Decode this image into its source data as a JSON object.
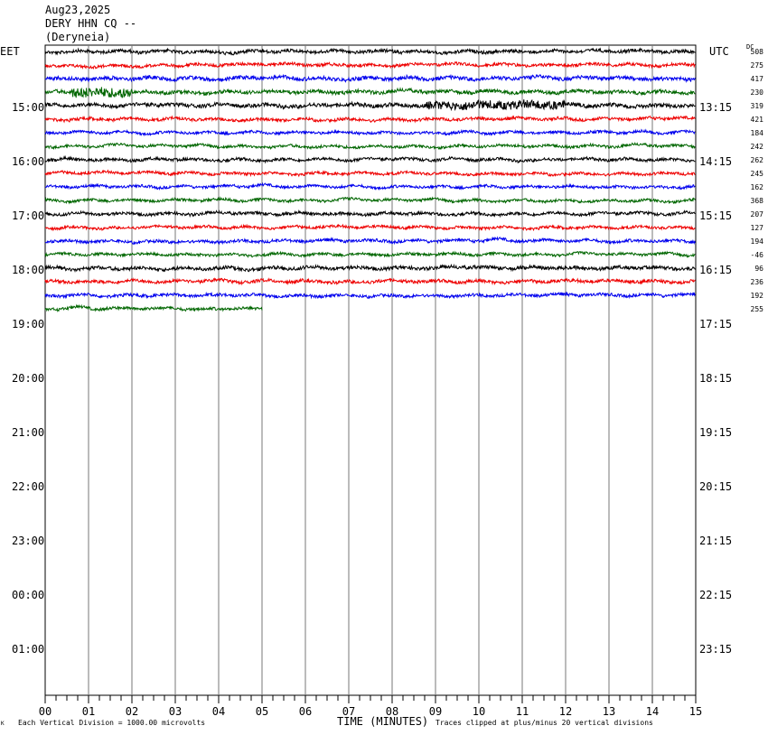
{
  "header": {
    "date": "Aug23,2025",
    "station": "DERY HHN CQ --",
    "location": "(Deryneia)"
  },
  "left_zone": "EET",
  "right_zone": "UTC",
  "dc_label": "DC",
  "footer": {
    "key_mark": "K",
    "vertical_division": "Each Vertical Division = 1000.00 microvolts",
    "clip_note": "Traces clipped at plus/minus 20 vertical divisions"
  },
  "chart_data": {
    "type": "line",
    "title": "DERY HHN CQ -- (Deryneia)",
    "xlabel": "TIME (MINUTES)",
    "x_ticks": [
      "00",
      "01",
      "02",
      "03",
      "04",
      "05",
      "06",
      "07",
      "08",
      "09",
      "10",
      "11",
      "12",
      "13",
      "14",
      "15"
    ],
    "xlim": [
      0,
      15
    ],
    "grid": true,
    "left_hour_labels": [
      "15:00",
      "16:00",
      "17:00",
      "18:00",
      "19:00",
      "20:00",
      "21:00",
      "22:00",
      "23:00",
      "00:00",
      "01:00"
    ],
    "right_hour_labels": [
      "13:15",
      "14:15",
      "15:15",
      "16:15",
      "17:15",
      "18:15",
      "19:15",
      "20:15",
      "21:15",
      "22:15",
      "23:15"
    ],
    "trace_colors": [
      "#000000",
      "#ee0000",
      "#0000ee",
      "#006600"
    ],
    "dc_offsets": [
      "508",
      "275",
      "417",
      "230",
      "319",
      "421",
      "184",
      "242",
      "262",
      "245",
      "162",
      "368",
      "207",
      "127",
      "194",
      "-46",
      "96",
      "236",
      "192",
      "255"
    ],
    "series": [
      {
        "line": 0,
        "minutes": 15,
        "amp": 2.2,
        "burst": null
      },
      {
        "line": 1,
        "minutes": 15,
        "amp": 2.0,
        "burst": null
      },
      {
        "line": 2,
        "minutes": 15,
        "amp": 2.6,
        "burst": null
      },
      {
        "line": 3,
        "minutes": 15,
        "amp": 2.4,
        "burst": [
          0.6,
          2.0,
          7
        ]
      },
      {
        "line": 4,
        "minutes": 15,
        "amp": 2.6,
        "burst": [
          8.8,
          12.0,
          6
        ]
      },
      {
        "line": 5,
        "minutes": 15,
        "amp": 2.0,
        "burst": null
      },
      {
        "line": 6,
        "minutes": 15,
        "amp": 1.8,
        "burst": null
      },
      {
        "line": 7,
        "minutes": 15,
        "amp": 1.8,
        "burst": null
      },
      {
        "line": 8,
        "minutes": 15,
        "amp": 2.0,
        "burst": null
      },
      {
        "line": 9,
        "minutes": 15,
        "amp": 1.8,
        "burst": null
      },
      {
        "line": 10,
        "minutes": 15,
        "amp": 1.8,
        "burst": null
      },
      {
        "line": 11,
        "minutes": 15,
        "amp": 1.8,
        "burst": null
      },
      {
        "line": 12,
        "minutes": 15,
        "amp": 2.0,
        "burst": null
      },
      {
        "line": 13,
        "minutes": 15,
        "amp": 1.8,
        "burst": null
      },
      {
        "line": 14,
        "minutes": 15,
        "amp": 2.0,
        "burst": null
      },
      {
        "line": 15,
        "minutes": 15,
        "amp": 1.8,
        "burst": null
      },
      {
        "line": 16,
        "minutes": 15,
        "amp": 2.4,
        "burst": null
      },
      {
        "line": 17,
        "minutes": 15,
        "amp": 2.2,
        "burst": null
      },
      {
        "line": 18,
        "minutes": 15,
        "amp": 2.0,
        "burst": null
      },
      {
        "line": 19,
        "minutes": 5,
        "amp": 2.0,
        "burst": null
      }
    ]
  }
}
